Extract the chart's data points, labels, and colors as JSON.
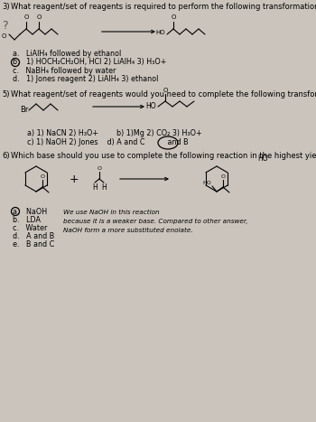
{
  "bg_color": "#cac4bc",
  "title_fontsize": 6.0,
  "body_fontsize": 5.8,
  "small_fontsize": 5.2,
  "q3_answers": [
    "a.   LiAlH₄ followed by ethanol",
    "b.   1) HOCH₂CH₂OH, HCl 2) LiAlH₄ 3) H₃O+",
    "c.   NaBH₄ followed by water",
    "d.   1) Jones reagent 2) LiAlH₄ 3) ethanol"
  ],
  "q5_row1": "a) 1) NaCN 2) H₃O+        b) 1)Mg 2) CO₂ 3) H₃O+",
  "q5_row2": "c) 1) NaOH 2) Jones    d) A and C          and B",
  "q6_answers": [
    "a.   NaOH",
    "b.   LDA",
    "c.   Water",
    "d.   A and B",
    "e.   B and C"
  ],
  "q6_exp1": "We use NaOH in this reaction",
  "q6_exp2": "because it is a weaker base. Compared to other answer,",
  "q6_exp3": "NaOH form a more substituted enolate."
}
